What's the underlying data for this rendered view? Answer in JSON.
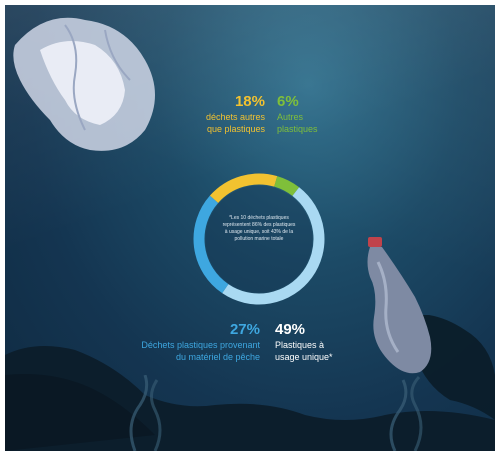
{
  "stats": {
    "s1": {
      "percent": "18%",
      "label_line1": "déchets autres",
      "label_line2": "que plastiques",
      "value": 18
    },
    "s2": {
      "percent": "6%",
      "label_line1": "Autres",
      "label_line2": "plastiques",
      "value": 6
    },
    "s3": {
      "percent": "27%",
      "label_line1": "Déchets plastiques provenant",
      "label_line2": "du matériel de pêche",
      "value": 27
    },
    "s4": {
      "percent": "49%",
      "label_line1": "Plastiques à",
      "label_line2": "usage unique*",
      "value": 49
    }
  },
  "center": {
    "line1": "*Les 10 déchets plastiques",
    "line2": "représentent 86% des plastiques",
    "line3": "à usage unique, soit 43% de la",
    "line4": "pollution marine totale"
  },
  "colors": {
    "yellow": "#f2c230",
    "green": "#7fbf3a",
    "blue": "#3ea7e0",
    "light_blue": "#a9d9f2",
    "background": "#143551"
  },
  "illustrations": [
    "plastic-bag-illustration",
    "plastic-bottle-illustration",
    "seabed-rocks-illustration",
    "seaweed-illustration"
  ]
}
